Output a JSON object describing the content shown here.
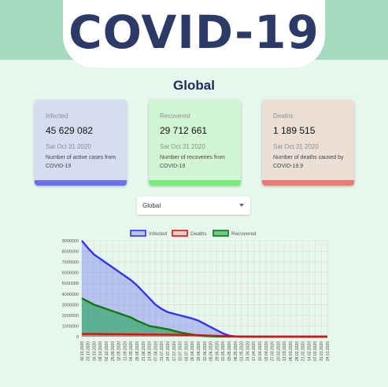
{
  "header": {
    "logo_text": "COVID-19"
  },
  "region_title": "Global",
  "cards": [
    {
      "label": "Infected",
      "value": "45 629 082",
      "date": "Sat Oct 31 2020",
      "description": "Number of active cases from COVID-19",
      "accent": "#6b70ee"
    },
    {
      "label": "Recovered",
      "value": "29 712 661",
      "date": "Sat Oct 31 2020",
      "description": "Number of recoveries from COVID-19",
      "accent": "#77ec78"
    },
    {
      "label": "Deaths",
      "value": "1 189 515",
      "date": "Sat Oct 31 2020",
      "description": "Number of deaths caused by COVID-19.9",
      "accent": "#f07a73"
    }
  ],
  "country_select": {
    "selected": "Global"
  },
  "chart_data": {
    "type": "area",
    "legend_position": "top",
    "grid": true,
    "ylim": [
      0,
      9000000
    ],
    "y_ticks": [
      "0",
      "1000000",
      "2000000",
      "3000000",
      "4000000",
      "5000000",
      "6000000",
      "7000000",
      "8000000",
      "9000000"
    ],
    "x": [
      "30.10.2020",
      "23.10.2020",
      "16.10.2020",
      "09.10.2020",
      "02.10.2020",
      "25.09.2020",
      "18.09.2020",
      "11.09.2020",
      "04.09.2020",
      "28.08.2020",
      "21.08.2020",
      "14.08.2020",
      "07.08.2020",
      "31.07.2020",
      "24.07.2020",
      "17.07.2020",
      "10.07.2020",
      "03.07.2020",
      "26.06.2020",
      "19.06.2020",
      "12.06.2020",
      "05.06.2020",
      "29.05.2020",
      "22.05.2020",
      "15.05.2020",
      "08.05.2020",
      "01.05.2020",
      "24.04.2020",
      "17.04.2020",
      "10.04.2020",
      "03.04.2020",
      "27.03.2020",
      "20.03.2020",
      "13.03.2020",
      "06.03.2020",
      "28.02.2020",
      "21.02.2020",
      "14.02.2020",
      "07.02.2020",
      "31.01.2020",
      "24.01.2020"
    ],
    "series": [
      {
        "name": "Infected",
        "color": "#3333ee",
        "fill": "rgba(90,100,235,0.35)",
        "values": [
          9000000,
          8300000,
          7700000,
          7300000,
          6900000,
          6500000,
          6100000,
          5700000,
          5300000,
          4800000,
          4200000,
          3600000,
          3000000,
          2600000,
          2300000,
          2150000,
          2000000,
          1850000,
          1700000,
          1500000,
          1200000,
          900000,
          600000,
          300000,
          100000,
          20000,
          15000,
          12000,
          10000,
          8000,
          6000,
          5000,
          4000,
          3000,
          2000,
          1000,
          500,
          300,
          200,
          100,
          0
        ]
      },
      {
        "name": "Deaths",
        "color": "#dd1111",
        "fill": "rgba(240,120,120,0.35)",
        "values": [
          260000,
          255000,
          250000,
          245000,
          240000,
          235000,
          230000,
          225000,
          220000,
          215000,
          210000,
          205000,
          200000,
          195000,
          190000,
          180000,
          170000,
          160000,
          150000,
          140000,
          120000,
          100000,
          80000,
          60000,
          40000,
          20000,
          10000,
          5000,
          3000,
          2000,
          1000,
          800,
          600,
          400,
          300,
          200,
          100,
          50,
          20,
          10,
          0
        ]
      },
      {
        "name": "Recovered",
        "color": "#117711",
        "fill": "rgba(20,160,70,0.55)",
        "values": [
          3600000,
          3300000,
          3000000,
          2800000,
          2600000,
          2400000,
          2200000,
          2000000,
          1800000,
          1500000,
          1250000,
          1000000,
          900000,
          800000,
          700000,
          550000,
          400000,
          300000,
          200000,
          100000,
          50000,
          30000,
          15000,
          5000,
          2000,
          1000,
          500,
          300,
          200,
          100,
          50,
          40,
          30,
          20,
          10,
          5,
          3,
          2,
          1,
          0,
          0
        ]
      }
    ]
  }
}
